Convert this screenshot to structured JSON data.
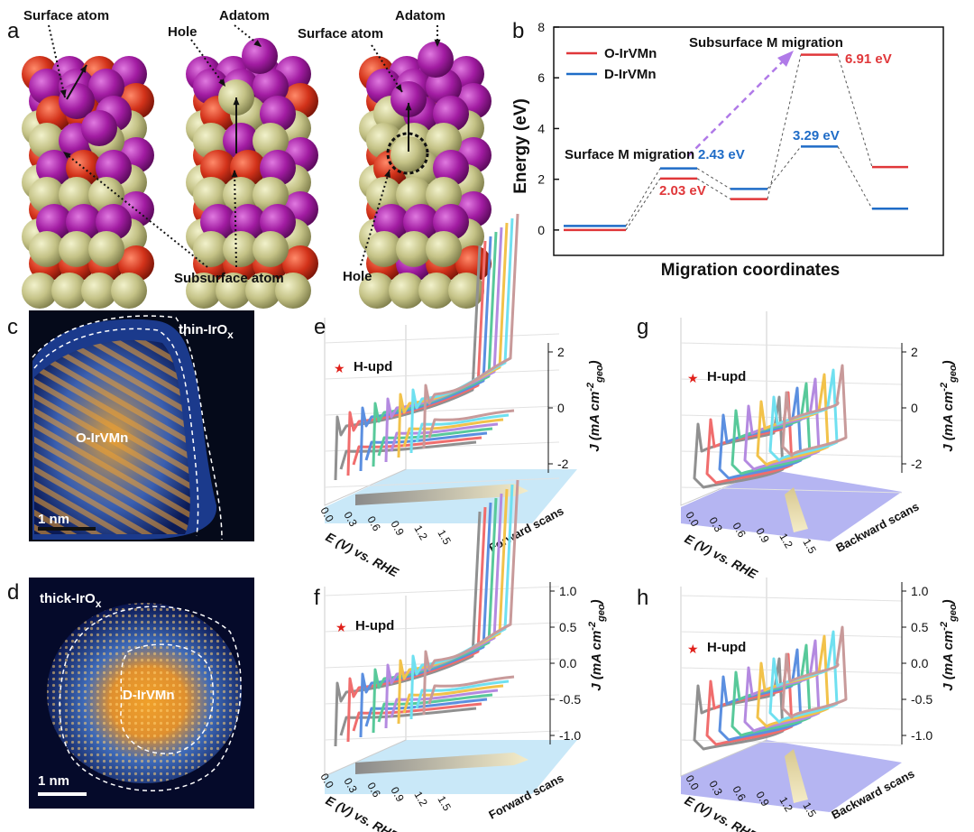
{
  "panels": {
    "a": {
      "label": "a",
      "annotations": {
        "surface_atom_1": "Surface atom",
        "adatom_1": "Adatom",
        "hole_1": "Hole",
        "surface_atom_2": "Surface atom",
        "adatom_2": "Adatom",
        "subsurface_atom": "Subsurface atom",
        "hole_2": "Hole"
      },
      "colors": {
        "adatom_purple": "#b01fb0",
        "red_atom": "#d8361c",
        "khaki_atom": "#c9c88a"
      }
    },
    "b": {
      "label": "b",
      "ylabel": "Energy (eV)",
      "xlabel": "Migration coordinates",
      "legend": [
        "O-IrVMn",
        "D-IrVMn"
      ],
      "annotations": {
        "surface_migration": "Surface M migration",
        "subsurface_migration": "Subsurface M migration",
        "o_barrier_1": "2.03 eV",
        "d_barrier_1": "2.43 eV",
        "d_barrier_2": "3.29 eV",
        "o_barrier_2": "6.91 eV"
      },
      "yticks": [
        "0",
        "2",
        "4",
        "6",
        "8"
      ]
    },
    "c": {
      "label": "c",
      "shell_label_main": "thin-IrO",
      "shell_label_sub": "x",
      "core_label": "O-IrVMn",
      "scale": "1 nm"
    },
    "d": {
      "label": "d",
      "shell_label_main": "thick-IrO",
      "shell_label_sub": "x",
      "core_label": "D-IrVMn",
      "scale": "1 nm"
    },
    "e": {
      "label": "e",
      "hupd": "H-upd",
      "scan": "Forward scans",
      "xaxis": "E (V) vs. RHE",
      "xticks": [
        "0.0",
        "0.3",
        "0.6",
        "0.9",
        "1.2",
        "1.5"
      ],
      "yticks": [
        "2",
        "0",
        "-2"
      ],
      "yaxis_main": "J (mA cm",
      "yaxis_sup": "-2",
      "yaxis_sub": "geo",
      "yaxis_close": ")"
    },
    "f": {
      "label": "f",
      "hupd": "H-upd",
      "scan": "Forward scans",
      "xaxis": "E (V) vs. RHE",
      "xticks": [
        "0.0",
        "0.3",
        "0.6",
        "0.9",
        "1.2",
        "1.5"
      ],
      "yticks": [
        "1.0",
        "0.5",
        "0.0",
        "-0.5",
        "-1.0"
      ],
      "yaxis_main": "J (mA cm",
      "yaxis_sup": "-2",
      "yaxis_sub": "geo",
      "yaxis_close": ")"
    },
    "g": {
      "label": "g",
      "hupd": "H-upd",
      "scan": "Backward scans",
      "xaxis": "E (V) vs. RHE",
      "xticks": [
        "0.0",
        "0.3",
        "0.6",
        "0.9",
        "1.2",
        "1.5"
      ],
      "yticks": [
        "2",
        "0",
        "-2"
      ],
      "yaxis_main": "J (mA cm",
      "yaxis_sup": "-2",
      "yaxis_sub": "geo",
      "yaxis_close": ")"
    },
    "h": {
      "label": "h",
      "hupd": "H-upd",
      "scan": "Backward scans",
      "xaxis": "E (V) vs. RHE",
      "xticks": [
        "0.0",
        "0.3",
        "0.6",
        "0.9",
        "1.2",
        "1.5"
      ],
      "yticks": [
        "1.0",
        "0.5",
        "0.0",
        "-0.5",
        "-1.0"
      ],
      "yaxis_main": "J (mA cm",
      "yaxis_sup": "-2",
      "yaxis_sub": "geo",
      "yaxis_close": ")"
    }
  },
  "chart_data": [
    {
      "type": "line",
      "panel": "b",
      "ylim": [
        -1,
        8
      ],
      "yticks": [
        0,
        2,
        4,
        6,
        8
      ],
      "ylabel": "Energy (eV)",
      "xlabel": "Migration coordinates",
      "series": [
        {
          "name": "O-IrVMn",
          "color": "#e0373a",
          "levels": [
            0.0,
            2.03,
            1.22,
            6.91,
            2.48
          ]
        },
        {
          "name": "D-IrVMn",
          "color": "#1f6cc7",
          "levels": [
            0.16,
            2.43,
            1.62,
            3.29,
            0.84
          ]
        }
      ]
    }
  ],
  "curve_colors": [
    "#909090",
    "#f06d6d",
    "#5b8fe0",
    "#58c99a",
    "#b48ae0",
    "#f2c24a",
    "#6fe0f0",
    "#c89a9a"
  ]
}
